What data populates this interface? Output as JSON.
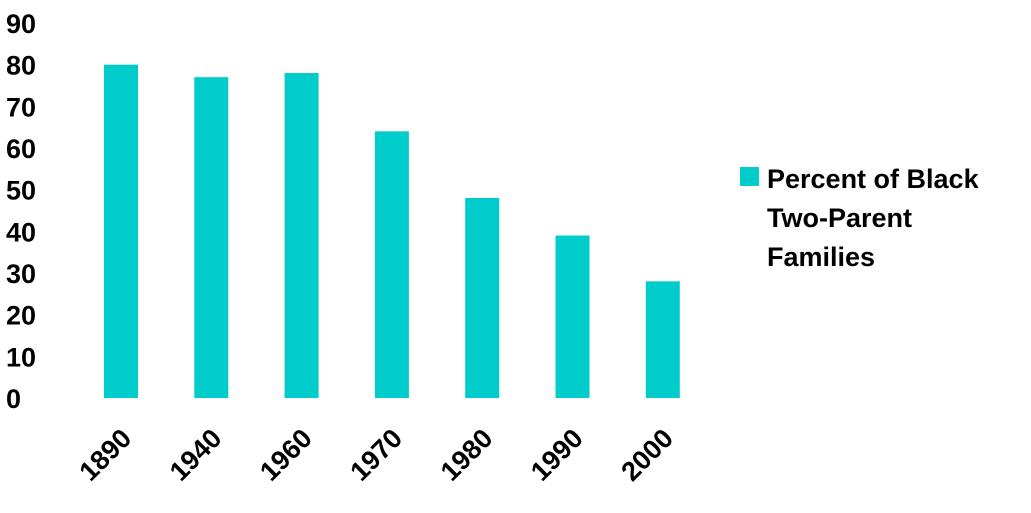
{
  "chart_data": {
    "type": "bar",
    "categories": [
      "1890",
      "1940",
      "1960",
      "1970",
      "1980",
      "1990",
      "2000"
    ],
    "series": [
      {
        "name": "Percent of Black Two-Parent Families",
        "values": [
          80,
          77,
          78,
          64,
          48,
          39,
          28
        ],
        "color": "#00CCCC"
      }
    ],
    "ylim": [
      0,
      90
    ],
    "yticks": [
      "0",
      "10",
      "20",
      "30",
      "40",
      "50",
      "60",
      "70",
      "80",
      "90"
    ],
    "title": "",
    "xlabel": "",
    "ylabel": "",
    "grid": false,
    "legend_position": "right"
  },
  "legend": {
    "label": "Percent of Black\nTwo-Parent\nFamilies",
    "color": "#00CCCC"
  }
}
